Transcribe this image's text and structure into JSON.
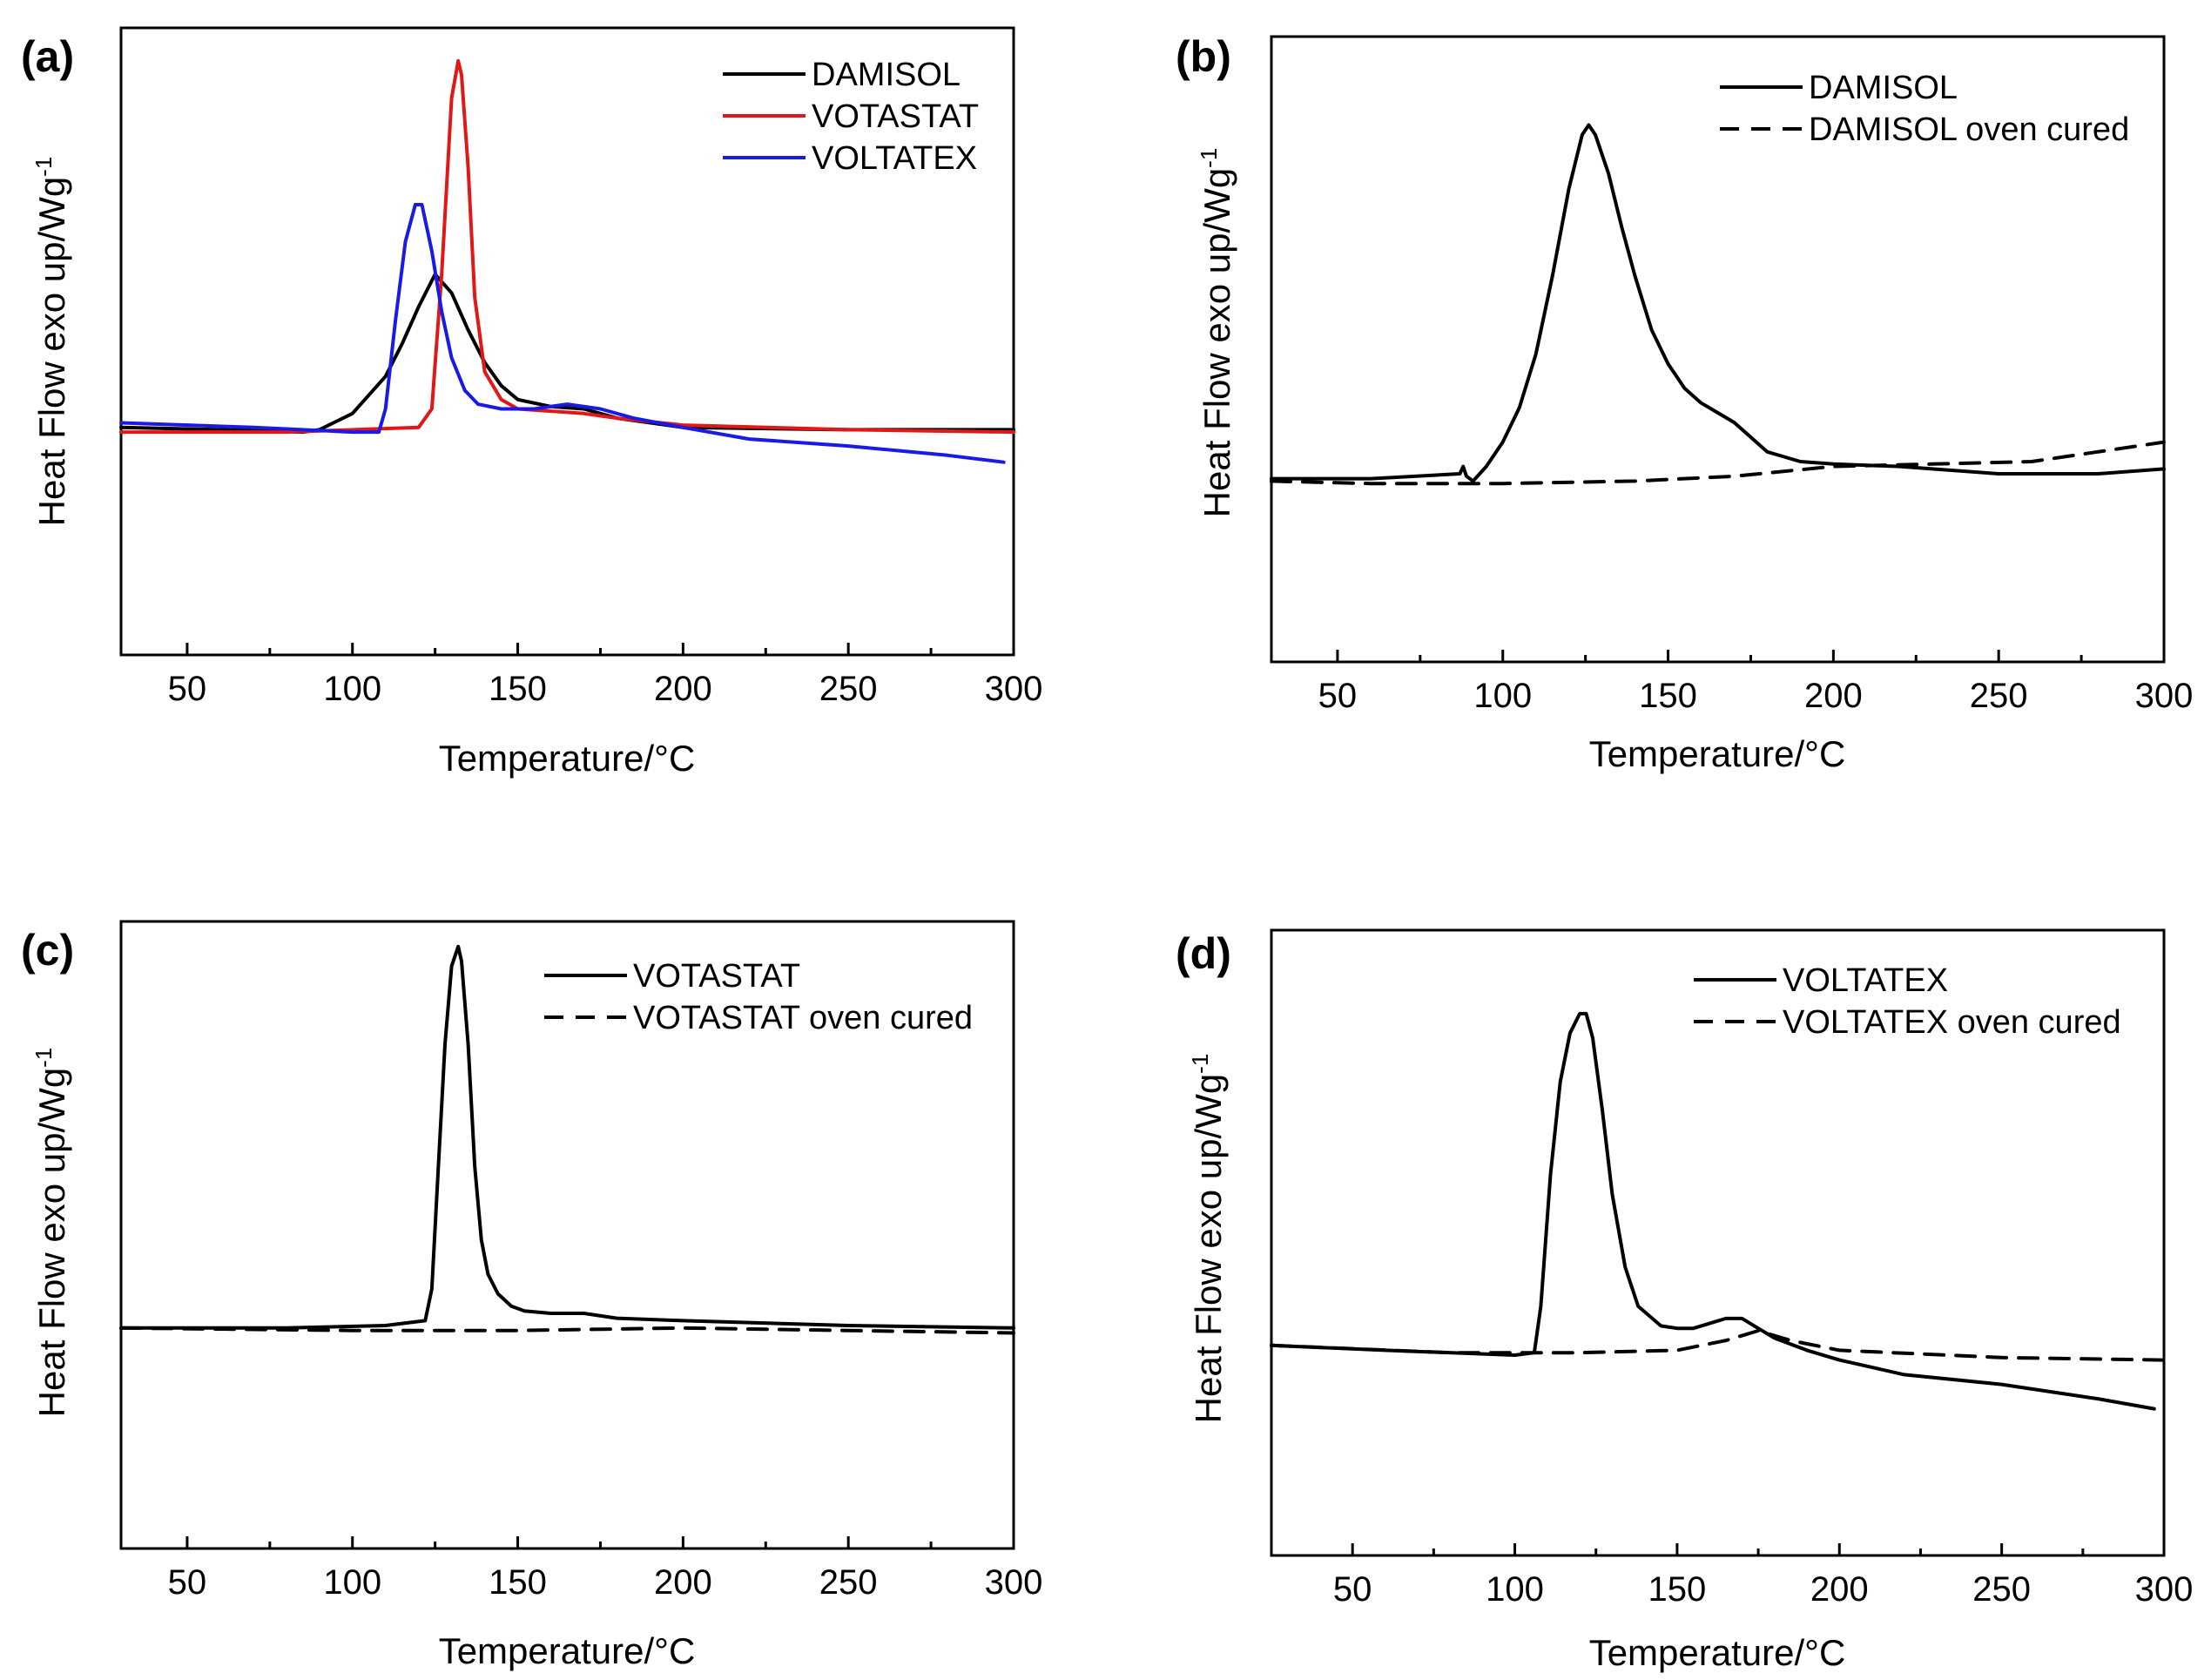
{
  "figure": {
    "panels": [
      {
        "label": "(a)",
        "xlabel": "Temperature/°C",
        "ylabel": "Heat Flow exo up/Wg",
        "ylabel_sup": "-1"
      },
      {
        "label": "(b)",
        "xlabel": "Temperature/°C",
        "ylabel": "Heat Flow exo up/Wg",
        "ylabel_sup": "-1"
      },
      {
        "label": "(c)",
        "xlabel": "Temperature/°C",
        "ylabel": "Heat Flow exo up/Wg",
        "ylabel_sup": "-1"
      },
      {
        "label": "(d)",
        "xlabel": "Temperature/°C",
        "ylabel": "Heat Flow exo up/Wg",
        "ylabel_sup": "-1"
      }
    ]
  },
  "chart_data": [
    {
      "type": "line",
      "panel": "(a)",
      "title": "",
      "xlabel": "Temperature/°C",
      "ylabel": "Heat Flow exo up/Wg-1",
      "xlim": [
        30,
        300
      ],
      "ylim": [
        0,
        100
      ],
      "xticks": [
        50,
        100,
        150,
        200,
        250,
        300
      ],
      "y_tick_labels": false,
      "grid": false,
      "legend_position": "top-right",
      "series": [
        {
          "name": "DAMISOL",
          "color": "#000000",
          "dash": "solid",
          "x": [
            30,
            60,
            85,
            90,
            100,
            110,
            115,
            120,
            125,
            130,
            135,
            140,
            145,
            150,
            160,
            170,
            180,
            200,
            250,
            300
          ],
          "y": [
            22,
            21.5,
            21,
            21.5,
            25,
            33,
            40,
            48,
            55,
            51,
            43,
            36,
            31,
            28,
            26.5,
            26,
            24,
            22,
            21.5,
            21.5
          ]
        },
        {
          "name": "VOTASTAT",
          "color": "#e01818",
          "dash": "solid",
          "x": [
            30,
            80,
            120,
            124,
            127,
            130,
            132,
            133,
            135,
            137,
            140,
            145,
            150,
            160,
            170,
            180,
            200,
            250,
            300
          ],
          "y": [
            21,
            21,
            22,
            26,
            55,
            93,
            101,
            98,
            78,
            50,
            34,
            28,
            26,
            25.5,
            25,
            24,
            22.5,
            21.5,
            21
          ]
        },
        {
          "name": "VOLTATEX",
          "color": "#1a1ae6",
          "dash": "solid",
          "x": [
            30,
            70,
            100,
            108,
            110,
            113,
            116,
            119,
            121,
            124,
            127,
            130,
            134,
            138,
            145,
            155,
            165,
            175,
            185,
            200,
            220,
            250,
            280,
            297
          ],
          "y": [
            23,
            22,
            21,
            21,
            26,
            45,
            62,
            70,
            70,
            60,
            47,
            37,
            30,
            27,
            26,
            26,
            27,
            26,
            24,
            22,
            19.5,
            18,
            16,
            14.5
          ]
        }
      ]
    },
    {
      "type": "line",
      "panel": "(b)",
      "title": "",
      "xlabel": "Temperature/°C",
      "ylabel": "Heat Flow exo up/Wg-1",
      "xlim": [
        30,
        300
      ],
      "ylim": [
        0,
        100
      ],
      "xticks": [
        50,
        100,
        150,
        200,
        250,
        300
      ],
      "y_tick_labels": false,
      "grid": false,
      "legend_position": "top-right",
      "series": [
        {
          "name": "DAMISOL",
          "color": "#000000",
          "dash": "solid",
          "x": [
            30,
            60,
            87,
            88,
            89,
            91,
            95,
            100,
            105,
            110,
            115,
            120,
            124,
            126,
            128,
            132,
            136,
            140,
            145,
            150,
            155,
            160,
            165,
            170,
            175,
            180,
            190,
            200,
            220,
            250,
            280,
            300
          ],
          "y": [
            14.5,
            14.5,
            15.5,
            17,
            15,
            14,
            17,
            22,
            29,
            40,
            56,
            74,
            85,
            87,
            85,
            77,
            66,
            56,
            45,
            38,
            33,
            30,
            28,
            26,
            23,
            20,
            18,
            17.5,
            17,
            15.5,
            15.5,
            16.5
          ]
        },
        {
          "name": "DAMISOL oven cured",
          "color": "#000000",
          "dash": "dashed",
          "x": [
            30,
            60,
            100,
            140,
            170,
            200,
            230,
            260,
            280,
            300
          ],
          "y": [
            14,
            13.5,
            13.5,
            14,
            15,
            17,
            17.5,
            18,
            20,
            22
          ]
        }
      ]
    },
    {
      "type": "line",
      "panel": "(c)",
      "title": "",
      "xlabel": "Temperature/°C",
      "ylabel": "Heat Flow exo up/Wg-1",
      "xlim": [
        30,
        300
      ],
      "ylim": [
        0,
        100
      ],
      "xticks": [
        50,
        100,
        150,
        200,
        250,
        300
      ],
      "y_tick_labels": false,
      "grid": false,
      "legend_position": "top-right",
      "series": [
        {
          "name": "VOTASTAT",
          "color": "#000000",
          "dash": "solid",
          "x": [
            30,
            80,
            110,
            122,
            124,
            126,
            128,
            130,
            132,
            133,
            135,
            137,
            139,
            141,
            144,
            148,
            152,
            160,
            170,
            180,
            200,
            250,
            300
          ],
          "y": [
            22,
            22,
            22.5,
            23.5,
            30,
            55,
            80,
            96,
            100,
            97,
            80,
            55,
            40,
            33,
            29,
            26.5,
            25.5,
            25,
            25,
            24,
            23.5,
            22.5,
            22
          ]
        },
        {
          "name": "VOTASTAT oven cured",
          "color": "#000000",
          "dash": "dashed",
          "x": [
            30,
            100,
            150,
            200,
            250,
            300
          ],
          "y": [
            22,
            21.5,
            21.5,
            22,
            21.5,
            21
          ]
        }
      ]
    },
    {
      "type": "line",
      "panel": "(d)",
      "title": "",
      "xlabel": "Temperature/°C",
      "ylabel": "Heat Flow exo up/Wg-1",
      "xlim": [
        25,
        300
      ],
      "ylim": [
        0,
        100
      ],
      "xticks": [
        50,
        100,
        150,
        200,
        250,
        300
      ],
      "y_tick_labels": false,
      "grid": false,
      "legend_position": "top-right",
      "series": [
        {
          "name": "VOLTATEX",
          "color": "#000000",
          "dash": "solid",
          "x": [
            25,
            60,
            100,
            106,
            108,
            111,
            114,
            117,
            120,
            122,
            124,
            127,
            130,
            134,
            138,
            145,
            150,
            155,
            160,
            165,
            170,
            175,
            180,
            190,
            200,
            220,
            250,
            280,
            297
          ],
          "y": [
            20,
            19,
            18,
            18.5,
            28,
            55,
            74,
            84,
            88,
            88,
            83,
            68,
            51,
            36,
            28,
            24,
            23.5,
            23.5,
            24.5,
            25.5,
            25.5,
            23.5,
            21.5,
            19,
            17,
            14,
            12,
            9,
            7
          ]
        },
        {
          "name": "VOLTATEX oven cured",
          "color": "#000000",
          "dash": "dashed",
          "x": [
            25,
            80,
            120,
            150,
            165,
            175,
            185,
            200,
            250,
            300
          ],
          "y": [
            20,
            18.5,
            18.5,
            19,
            21,
            23,
            21,
            19,
            17.5,
            17
          ]
        }
      ]
    }
  ]
}
